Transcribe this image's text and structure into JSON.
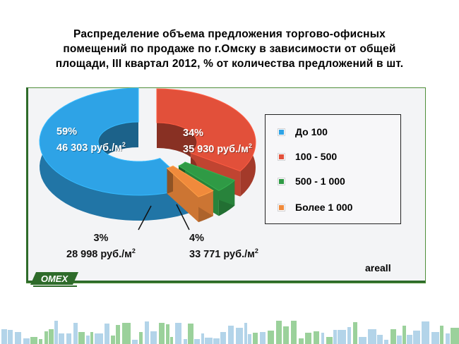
{
  "title_lines": [
    "Распределение объема предложения торгово-офисных",
    "помещений по продаже по г.Омску в зависимости от общей",
    "площади, III квартал 2012, % от количества предложений в шт."
  ],
  "chart_data": {
    "type": "pie",
    "title": "Распределение объема предложения торгово-офисных помещений по продаже по г.Омску в зависимости от общей площади, III квартал 2012, % от количества предложений в шт.",
    "categories": [
      "До 100",
      "100 - 500",
      "500 - 1 000",
      "Более 1 000"
    ],
    "values": [
      59,
      34,
      4,
      3
    ],
    "unit": "%",
    "price_labels": [
      "46 303 руб./м",
      "35 930 руб./м",
      "33 771 руб./м",
      "28 998 руб./м"
    ],
    "price_sup": "2",
    "colors": [
      "#2ea3e6",
      "#e2503a",
      "#2f9a45",
      "#f08a3c"
    ],
    "legend_position": "right"
  },
  "labels": [
    {
      "pct": "59%",
      "price": "46 303 руб./м"
    },
    {
      "pct": "34%",
      "price": "35 930 руб./м"
    },
    {
      "pct": "4%",
      "price": "33 771 руб./м"
    },
    {
      "pct": "3%",
      "price": "28 998 руб./м"
    }
  ],
  "sup2": "2",
  "legend": [
    {
      "label": "До 100",
      "color": "#2ea3e6"
    },
    {
      "label": "100 - 500",
      "color": "#e2503a"
    },
    {
      "label": "500 - 1 000",
      "color": "#2f9a45"
    },
    {
      "label": "Более 1 000",
      "color": "#f08a3c"
    }
  ],
  "brand": "areall",
  "logo_text": "OMEX",
  "colors": {
    "frame_green": "#2e6b2a",
    "skyline_green": "#7ac27a",
    "skyline_blue": "#9ac6e2"
  }
}
